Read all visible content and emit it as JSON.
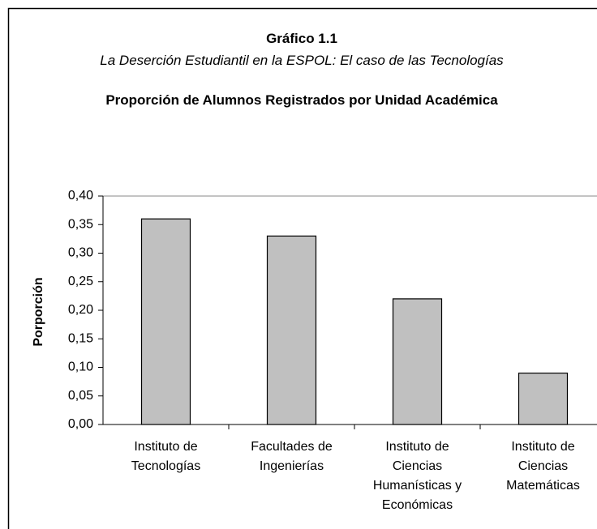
{
  "chart_data": {
    "type": "bar",
    "title": "Gráfico 1.1",
    "subtitle": "La Deserción Estudiantil en la ESPOL: El caso de las Tecnologías",
    "title2": "Proporción de Alumnos Registrados por Unidad Académica",
    "y_label": "Porporción",
    "categories": [
      "Instituto de Tecnologías",
      "Facultades de Ingenierías",
      "Instituto de Ciencias Humanísticas y Económicas",
      "Instituto de Ciencias Matemáticas"
    ],
    "values": [
      0.36,
      0.33,
      0.22,
      0.09
    ],
    "color": "#c0c0c0",
    "ylim": [
      0,
      0.4
    ],
    "yticks": [
      {
        "value": 0,
        "label": "0,00"
      },
      {
        "value": 0.05,
        "label": "0,05"
      },
      {
        "value": 0.1,
        "label": "0,10"
      },
      {
        "value": 0.15,
        "label": "0,15"
      },
      {
        "value": 0.2,
        "label": "0,20"
      },
      {
        "value": 0.25,
        "label": "0,25"
      },
      {
        "value": 0.3,
        "label": "0,30"
      },
      {
        "value": 0.35,
        "label": "0,35"
      },
      {
        "value": 0.4,
        "label": "0,40"
      }
    ],
    "grid": false
  }
}
